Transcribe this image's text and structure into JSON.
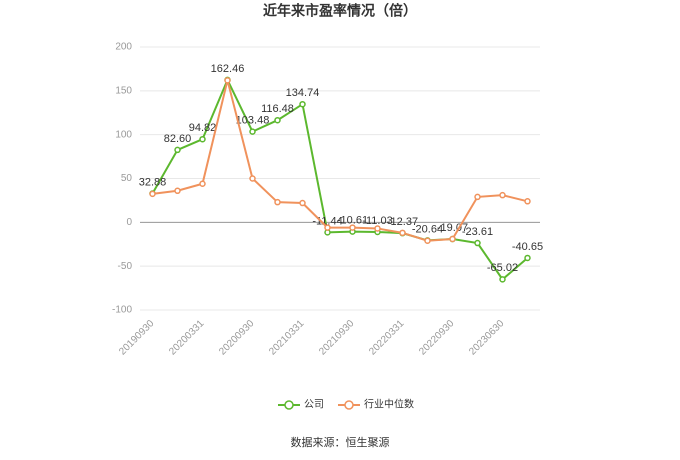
{
  "chart_data": {
    "type": "line",
    "title": "近年来市盈率情况（倍）",
    "source": "数据来源：恒生聚源",
    "categories": [
      "20190930",
      null,
      "20200331",
      null,
      "20200930",
      null,
      "20210331",
      null,
      "20210930",
      null,
      "20220331",
      null,
      "20220930",
      null,
      "20230630",
      null
    ],
    "series": [
      {
        "name": "公司",
        "color": "#5cb82e",
        "values": [
          32.88,
          82.6,
          94.82,
          162.46,
          103.48,
          116.48,
          134.74,
          -11.44,
          -10.61,
          -11.03,
          -12.37,
          -20.64,
          -19.07,
          -23.61,
          -65.02,
          -40.65
        ],
        "value_labels": [
          "32.88",
          "82.60",
          "94.82",
          "162.46",
          "103.48",
          "116.48",
          "134.74",
          "-11.44",
          "-10.61",
          "-11.03",
          "-12.37",
          "-20.64",
          "-19.07",
          "-23.61",
          "-65.02",
          "-40.65"
        ]
      },
      {
        "name": "行业中位数",
        "color": "#f0925c",
        "values": [
          32.5,
          36,
          44,
          162,
          50,
          23,
          22,
          -6,
          -6,
          -7,
          -12,
          -21,
          -19,
          29,
          31,
          24
        ]
      }
    ],
    "ylim": [
      -100,
      200
    ],
    "yticks": [
      -100,
      -50,
      0,
      50,
      100,
      150,
      200
    ],
    "grid": true
  }
}
